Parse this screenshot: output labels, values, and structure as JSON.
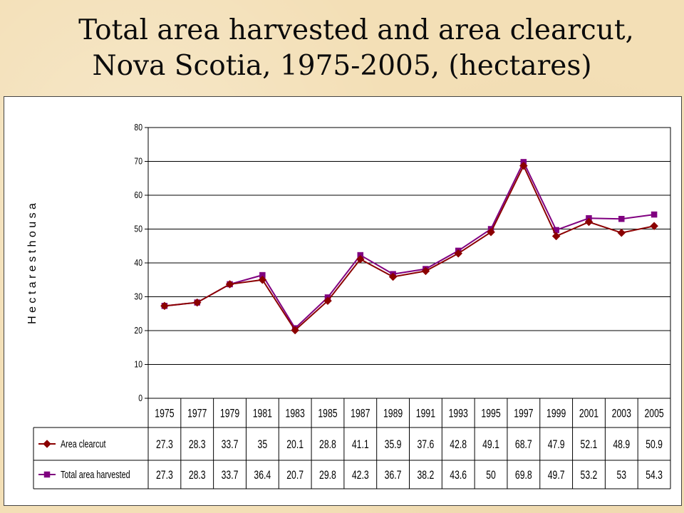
{
  "title_lines": [
    "Total area harvested and area clearcut,",
    "Nova Scotia, 1975-2005, (hectares)"
  ],
  "chart_data": {
    "type": "line",
    "ylabel": "H e c t a r e s  t h o u s a",
    "ylim": [
      0,
      80
    ],
    "yticks": [
      0,
      10,
      20,
      30,
      40,
      50,
      60,
      70,
      80
    ],
    "grid": true,
    "legend_placement": "data-table-below",
    "categories": [
      "1975",
      "1977",
      "1979",
      "1981",
      "1983",
      "1985",
      "1987",
      "1989",
      "1991",
      "1993",
      "1995",
      "1997",
      "1999",
      "2001",
      "2003",
      "2005"
    ],
    "series": [
      {
        "name": "Area clearcut",
        "marker": "diamond",
        "color": "#8b0000",
        "values": [
          27.3,
          28.3,
          33.7,
          35,
          20.1,
          28.8,
          41.1,
          35.9,
          37.6,
          42.8,
          49.1,
          68.7,
          47.9,
          52.1,
          48.9,
          50.9
        ]
      },
      {
        "name": "Total area harvested",
        "marker": "square",
        "color": "#800080",
        "values": [
          27.3,
          28.3,
          33.7,
          36.4,
          20.7,
          29.8,
          42.3,
          36.7,
          38.2,
          43.6,
          50,
          69.8,
          49.7,
          53.2,
          53,
          54.3
        ]
      }
    ]
  }
}
